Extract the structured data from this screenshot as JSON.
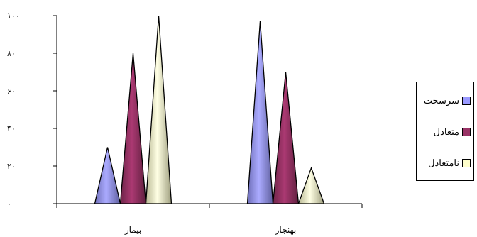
{
  "chart_data": {
    "type": "bar",
    "style": "cone",
    "categories": [
      "بیمار",
      "بهنجار"
    ],
    "series": [
      {
        "name": "سرسخت",
        "values": [
          30,
          97
        ],
        "color": "#9999ff"
      },
      {
        "name": "متعادل",
        "values": [
          80,
          70
        ],
        "color": "#993366"
      },
      {
        "name": "نامتعادل",
        "values": [
          100,
          19
        ],
        "color": "#ffffcc"
      }
    ],
    "ylim": [
      0,
      100
    ],
    "yticks": [
      "۰",
      "۲۰",
      "۴۰",
      "۶۰",
      "۸۰",
      "۱۰۰"
    ],
    "grid": false,
    "legend": "right"
  }
}
